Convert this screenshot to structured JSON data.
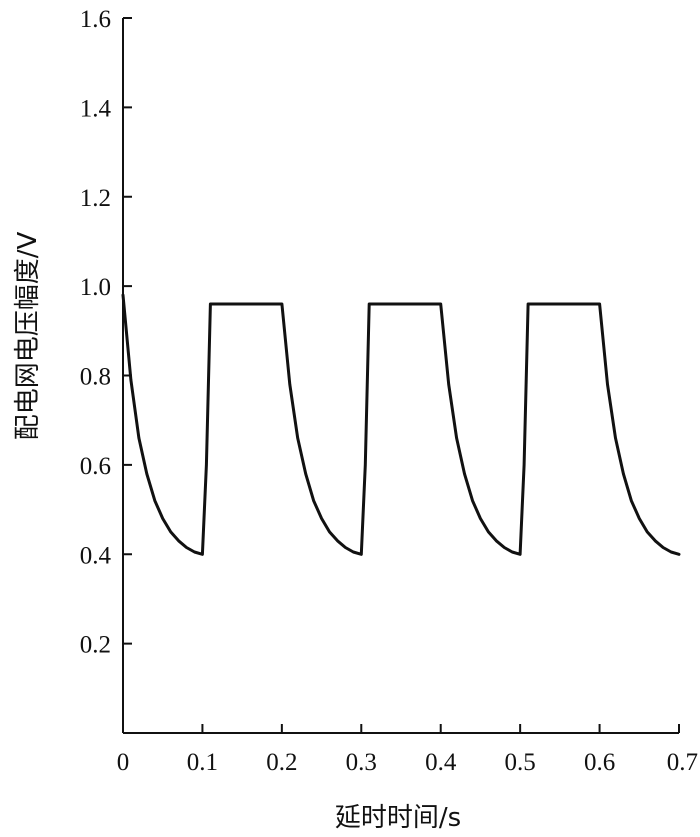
{
  "chart_data": {
    "type": "line",
    "title": "",
    "xlabel": "延时时间/s",
    "ylabel": "配电网电压幅度/V",
    "xlim": [
      0,
      0.7
    ],
    "ylim": [
      0,
      1.6
    ],
    "x_ticks": [
      "0",
      "0.1",
      "0.2",
      "0.3",
      "0.4",
      "0.5",
      "0.6",
      "0.7"
    ],
    "y_ticks": [
      "0.2",
      "0.4",
      "0.6",
      "0.8",
      "1.0",
      "1.2",
      "1.4",
      "1.6"
    ],
    "grid": false,
    "line_color": "#111111",
    "series": [
      {
        "x": [
          0,
          0.01,
          0.02,
          0.03,
          0.04,
          0.05,
          0.06,
          0.07,
          0.08,
          0.09,
          0.1,
          0.105,
          0.11,
          0.12,
          0.14,
          0.16,
          0.18,
          0.2,
          0.21,
          0.22,
          0.23,
          0.24,
          0.25,
          0.26,
          0.27,
          0.28,
          0.29,
          0.3,
          0.305,
          0.31,
          0.32,
          0.34,
          0.36,
          0.38,
          0.4,
          0.41,
          0.42,
          0.43,
          0.44,
          0.45,
          0.46,
          0.47,
          0.48,
          0.49,
          0.5,
          0.505,
          0.51,
          0.52,
          0.54,
          0.56,
          0.58,
          0.6,
          0.61,
          0.62,
          0.63,
          0.64,
          0.65,
          0.66,
          0.67,
          0.68,
          0.69,
          0.7
        ],
        "y": [
          0.98,
          0.79,
          0.66,
          0.58,
          0.52,
          0.48,
          0.45,
          0.43,
          0.415,
          0.405,
          0.4,
          0.6,
          0.96,
          0.96,
          0.96,
          0.96,
          0.96,
          0.96,
          0.78,
          0.66,
          0.58,
          0.52,
          0.48,
          0.45,
          0.43,
          0.415,
          0.405,
          0.4,
          0.6,
          0.96,
          0.96,
          0.96,
          0.96,
          0.96,
          0.96,
          0.78,
          0.66,
          0.58,
          0.52,
          0.48,
          0.45,
          0.43,
          0.415,
          0.405,
          0.4,
          0.6,
          0.96,
          0.96,
          0.96,
          0.96,
          0.96,
          0.96,
          0.78,
          0.66,
          0.58,
          0.52,
          0.48,
          0.45,
          0.43,
          0.415,
          0.405,
          0.4
        ]
      }
    ]
  }
}
